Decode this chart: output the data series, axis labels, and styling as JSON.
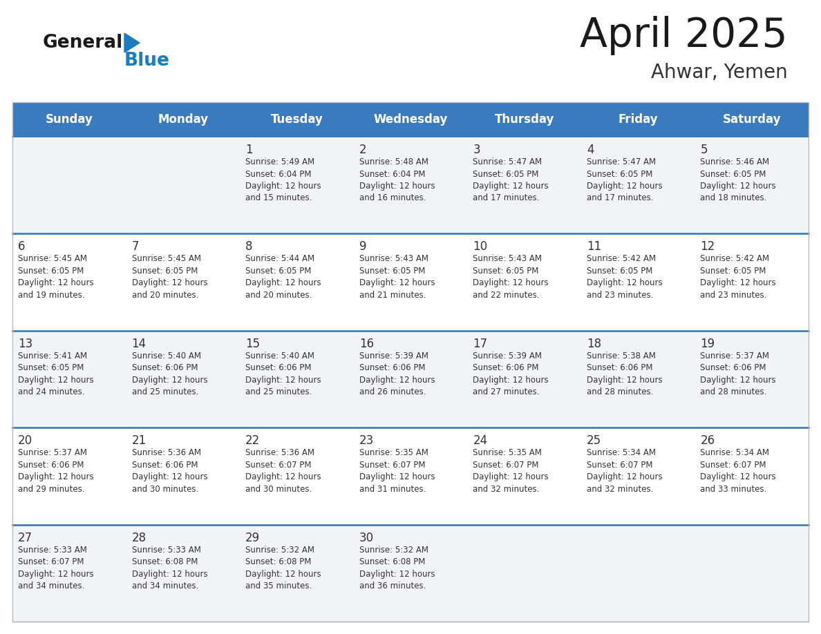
{
  "title": "April 2025",
  "subtitle": "Ahwar, Yemen",
  "header_bg": "#3a7abf",
  "header_text_color": "#ffffff",
  "days_of_week": [
    "Sunday",
    "Monday",
    "Tuesday",
    "Wednesday",
    "Thursday",
    "Friday",
    "Saturday"
  ],
  "cell_bg_light": "#f0f4f8",
  "cell_bg_white": "#ffffff",
  "row_line_color": "#2e75b6",
  "text_color": "#333333",
  "logo_general_color": "#1a1a1a",
  "logo_blue_color": "#1a7cc1",
  "fig_bg": "#ffffff",
  "weeks": [
    [
      {
        "day": null,
        "info": null
      },
      {
        "day": null,
        "info": null
      },
      {
        "day": 1,
        "info": "Sunrise: 5:49 AM\nSunset: 6:04 PM\nDaylight: 12 hours\nand 15 minutes."
      },
      {
        "day": 2,
        "info": "Sunrise: 5:48 AM\nSunset: 6:04 PM\nDaylight: 12 hours\nand 16 minutes."
      },
      {
        "day": 3,
        "info": "Sunrise: 5:47 AM\nSunset: 6:05 PM\nDaylight: 12 hours\nand 17 minutes."
      },
      {
        "day": 4,
        "info": "Sunrise: 5:47 AM\nSunset: 6:05 PM\nDaylight: 12 hours\nand 17 minutes."
      },
      {
        "day": 5,
        "info": "Sunrise: 5:46 AM\nSunset: 6:05 PM\nDaylight: 12 hours\nand 18 minutes."
      }
    ],
    [
      {
        "day": 6,
        "info": "Sunrise: 5:45 AM\nSunset: 6:05 PM\nDaylight: 12 hours\nand 19 minutes."
      },
      {
        "day": 7,
        "info": "Sunrise: 5:45 AM\nSunset: 6:05 PM\nDaylight: 12 hours\nand 20 minutes."
      },
      {
        "day": 8,
        "info": "Sunrise: 5:44 AM\nSunset: 6:05 PM\nDaylight: 12 hours\nand 20 minutes."
      },
      {
        "day": 9,
        "info": "Sunrise: 5:43 AM\nSunset: 6:05 PM\nDaylight: 12 hours\nand 21 minutes."
      },
      {
        "day": 10,
        "info": "Sunrise: 5:43 AM\nSunset: 6:05 PM\nDaylight: 12 hours\nand 22 minutes."
      },
      {
        "day": 11,
        "info": "Sunrise: 5:42 AM\nSunset: 6:05 PM\nDaylight: 12 hours\nand 23 minutes."
      },
      {
        "day": 12,
        "info": "Sunrise: 5:42 AM\nSunset: 6:05 PM\nDaylight: 12 hours\nand 23 minutes."
      }
    ],
    [
      {
        "day": 13,
        "info": "Sunrise: 5:41 AM\nSunset: 6:05 PM\nDaylight: 12 hours\nand 24 minutes."
      },
      {
        "day": 14,
        "info": "Sunrise: 5:40 AM\nSunset: 6:06 PM\nDaylight: 12 hours\nand 25 minutes."
      },
      {
        "day": 15,
        "info": "Sunrise: 5:40 AM\nSunset: 6:06 PM\nDaylight: 12 hours\nand 25 minutes."
      },
      {
        "day": 16,
        "info": "Sunrise: 5:39 AM\nSunset: 6:06 PM\nDaylight: 12 hours\nand 26 minutes."
      },
      {
        "day": 17,
        "info": "Sunrise: 5:39 AM\nSunset: 6:06 PM\nDaylight: 12 hours\nand 27 minutes."
      },
      {
        "day": 18,
        "info": "Sunrise: 5:38 AM\nSunset: 6:06 PM\nDaylight: 12 hours\nand 28 minutes."
      },
      {
        "day": 19,
        "info": "Sunrise: 5:37 AM\nSunset: 6:06 PM\nDaylight: 12 hours\nand 28 minutes."
      }
    ],
    [
      {
        "day": 20,
        "info": "Sunrise: 5:37 AM\nSunset: 6:06 PM\nDaylight: 12 hours\nand 29 minutes."
      },
      {
        "day": 21,
        "info": "Sunrise: 5:36 AM\nSunset: 6:06 PM\nDaylight: 12 hours\nand 30 minutes."
      },
      {
        "day": 22,
        "info": "Sunrise: 5:36 AM\nSunset: 6:07 PM\nDaylight: 12 hours\nand 30 minutes."
      },
      {
        "day": 23,
        "info": "Sunrise: 5:35 AM\nSunset: 6:07 PM\nDaylight: 12 hours\nand 31 minutes."
      },
      {
        "day": 24,
        "info": "Sunrise: 5:35 AM\nSunset: 6:07 PM\nDaylight: 12 hours\nand 32 minutes."
      },
      {
        "day": 25,
        "info": "Sunrise: 5:34 AM\nSunset: 6:07 PM\nDaylight: 12 hours\nand 32 minutes."
      },
      {
        "day": 26,
        "info": "Sunrise: 5:34 AM\nSunset: 6:07 PM\nDaylight: 12 hours\nand 33 minutes."
      }
    ],
    [
      {
        "day": 27,
        "info": "Sunrise: 5:33 AM\nSunset: 6:07 PM\nDaylight: 12 hours\nand 34 minutes."
      },
      {
        "day": 28,
        "info": "Sunrise: 5:33 AM\nSunset: 6:08 PM\nDaylight: 12 hours\nand 34 minutes."
      },
      {
        "day": 29,
        "info": "Sunrise: 5:32 AM\nSunset: 6:08 PM\nDaylight: 12 hours\nand 35 minutes."
      },
      {
        "day": 30,
        "info": "Sunrise: 5:32 AM\nSunset: 6:08 PM\nDaylight: 12 hours\nand 36 minutes."
      },
      {
        "day": null,
        "info": null
      },
      {
        "day": null,
        "info": null
      },
      {
        "day": null,
        "info": null
      }
    ]
  ]
}
